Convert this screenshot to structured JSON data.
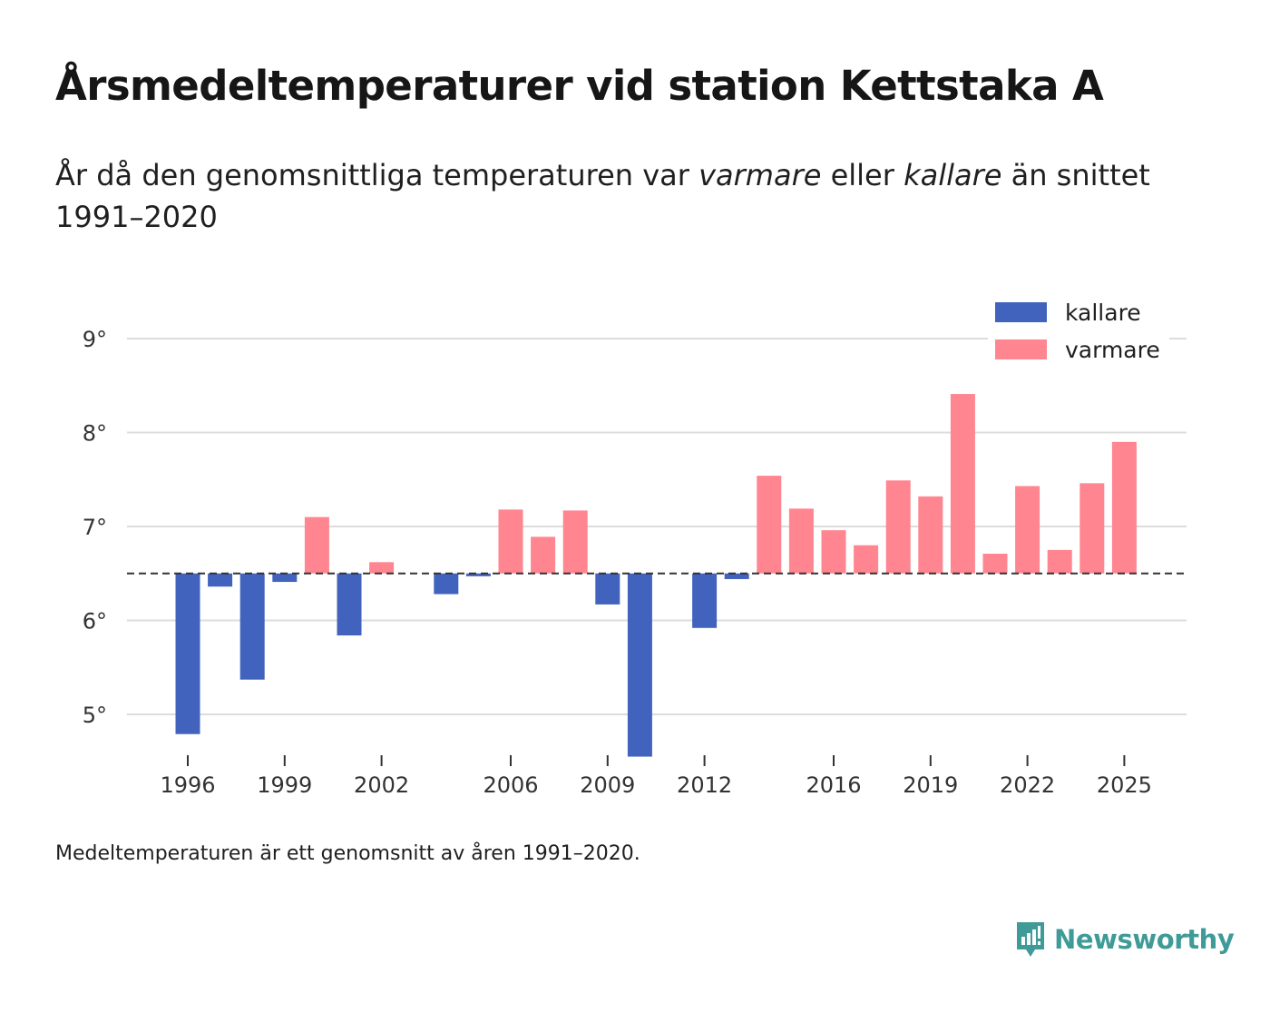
{
  "title": "Årsmedeltemperaturer vid station Kettstaka A",
  "subtitle": {
    "part1": "År då den genomsnittliga temperaturen var ",
    "warm_word": "varmare",
    "part2": " eller ",
    "cold_word": "kallare",
    "part3": " än snittet 1991–2020"
  },
  "footnote": "Medeltemperaturen är ett genomsnitt av åren 1991–2020.",
  "brand": "Newsworthy",
  "colors": {
    "colder": "#4163bd",
    "warmer": "#ff8590",
    "grid": "#dcdcdc",
    "baseline": "#333333",
    "brand": "#3f9b98"
  },
  "chart_data": {
    "type": "bar",
    "baseline": 6.5,
    "ylim": [
      4.55,
      9.45
    ],
    "yticks": [
      5,
      6,
      7,
      8,
      9
    ],
    "ytick_suffix": "°",
    "xticks": [
      1996,
      1999,
      2002,
      2006,
      2009,
      2012,
      2016,
      2019,
      2022,
      2025
    ],
    "legend": [
      {
        "key": "colder",
        "label": "kallare"
      },
      {
        "key": "warmer",
        "label": "varmare"
      }
    ],
    "legend_position": "top-right",
    "years": [
      1996,
      1997,
      1998,
      1999,
      2000,
      2001,
      2002,
      2003,
      2004,
      2005,
      2006,
      2007,
      2008,
      2009,
      2010,
      2011,
      2012,
      2013,
      2014,
      2015,
      2016,
      2017,
      2018,
      2019,
      2020,
      2021,
      2022,
      2023,
      2024,
      2025
    ],
    "values": [
      4.79,
      6.36,
      5.37,
      6.41,
      7.1,
      5.84,
      6.62,
      null,
      6.28,
      6.47,
      7.18,
      6.89,
      7.17,
      6.17,
      4.55,
      null,
      5.92,
      6.44,
      7.54,
      7.19,
      6.96,
      6.8,
      7.49,
      7.32,
      8.41,
      6.71,
      7.43,
      6.75,
      7.46,
      7.9
    ]
  }
}
